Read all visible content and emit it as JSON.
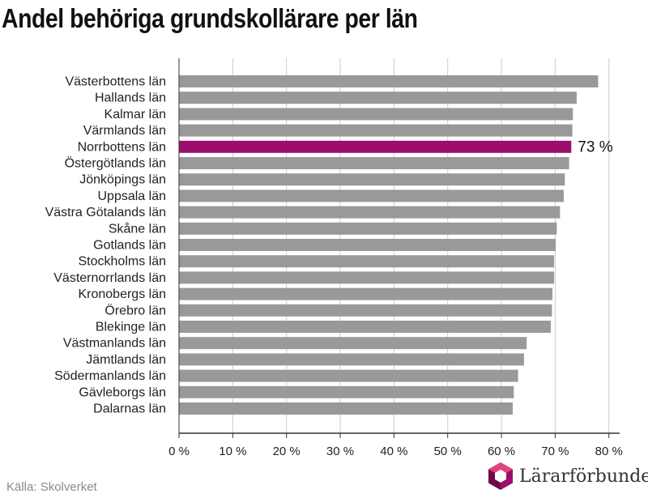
{
  "title": "Andel behöriga grundskollärare per län",
  "source": "Källa: Skolverket",
  "brand": {
    "name": "Lärarförbundet",
    "logo_icon": "hexagon-logo-icon"
  },
  "colors": {
    "bar": "#999999",
    "highlight": "#9b0e6e",
    "grid": "#cccccc",
    "axis": "#333333"
  },
  "chart_data": {
    "type": "bar",
    "orientation": "horizontal",
    "categories": [
      "Västerbottens län",
      "Hallands län",
      "Kalmar län",
      "Värmlands län",
      "Norrbottens län",
      "Östergötlands län",
      "Jönköpings län",
      "Uppsala län",
      "Västra Götalands län",
      "Skåne län",
      "Gotlands län",
      "Stockholms län",
      "Västernorrlands län",
      "Kronobergs län",
      "Örebro län",
      "Blekinge län",
      "Västmanlands län",
      "Jämtlands län",
      "Södermanlands län",
      "Gävleborgs län",
      "Dalarnas län"
    ],
    "values": [
      78,
      74,
      73.3,
      73.2,
      73,
      72.6,
      71.8,
      71.6,
      70.9,
      70.3,
      70.1,
      69.8,
      69.8,
      69.5,
      69.4,
      69.2,
      64.7,
      64.2,
      63.1,
      62.3,
      62.1
    ],
    "highlight": {
      "category": "Norrbottens län",
      "label": "73 %"
    },
    "xlim": [
      0,
      82
    ],
    "ticks": [
      0,
      10,
      20,
      30,
      40,
      50,
      60,
      70,
      80
    ],
    "tick_labels": [
      "0 %",
      "10 %",
      "20 %",
      "30 %",
      "40 %",
      "50 %",
      "60 %",
      "70 %",
      "80 %"
    ],
    "grid": true,
    "xlabel": "",
    "ylabel": ""
  }
}
